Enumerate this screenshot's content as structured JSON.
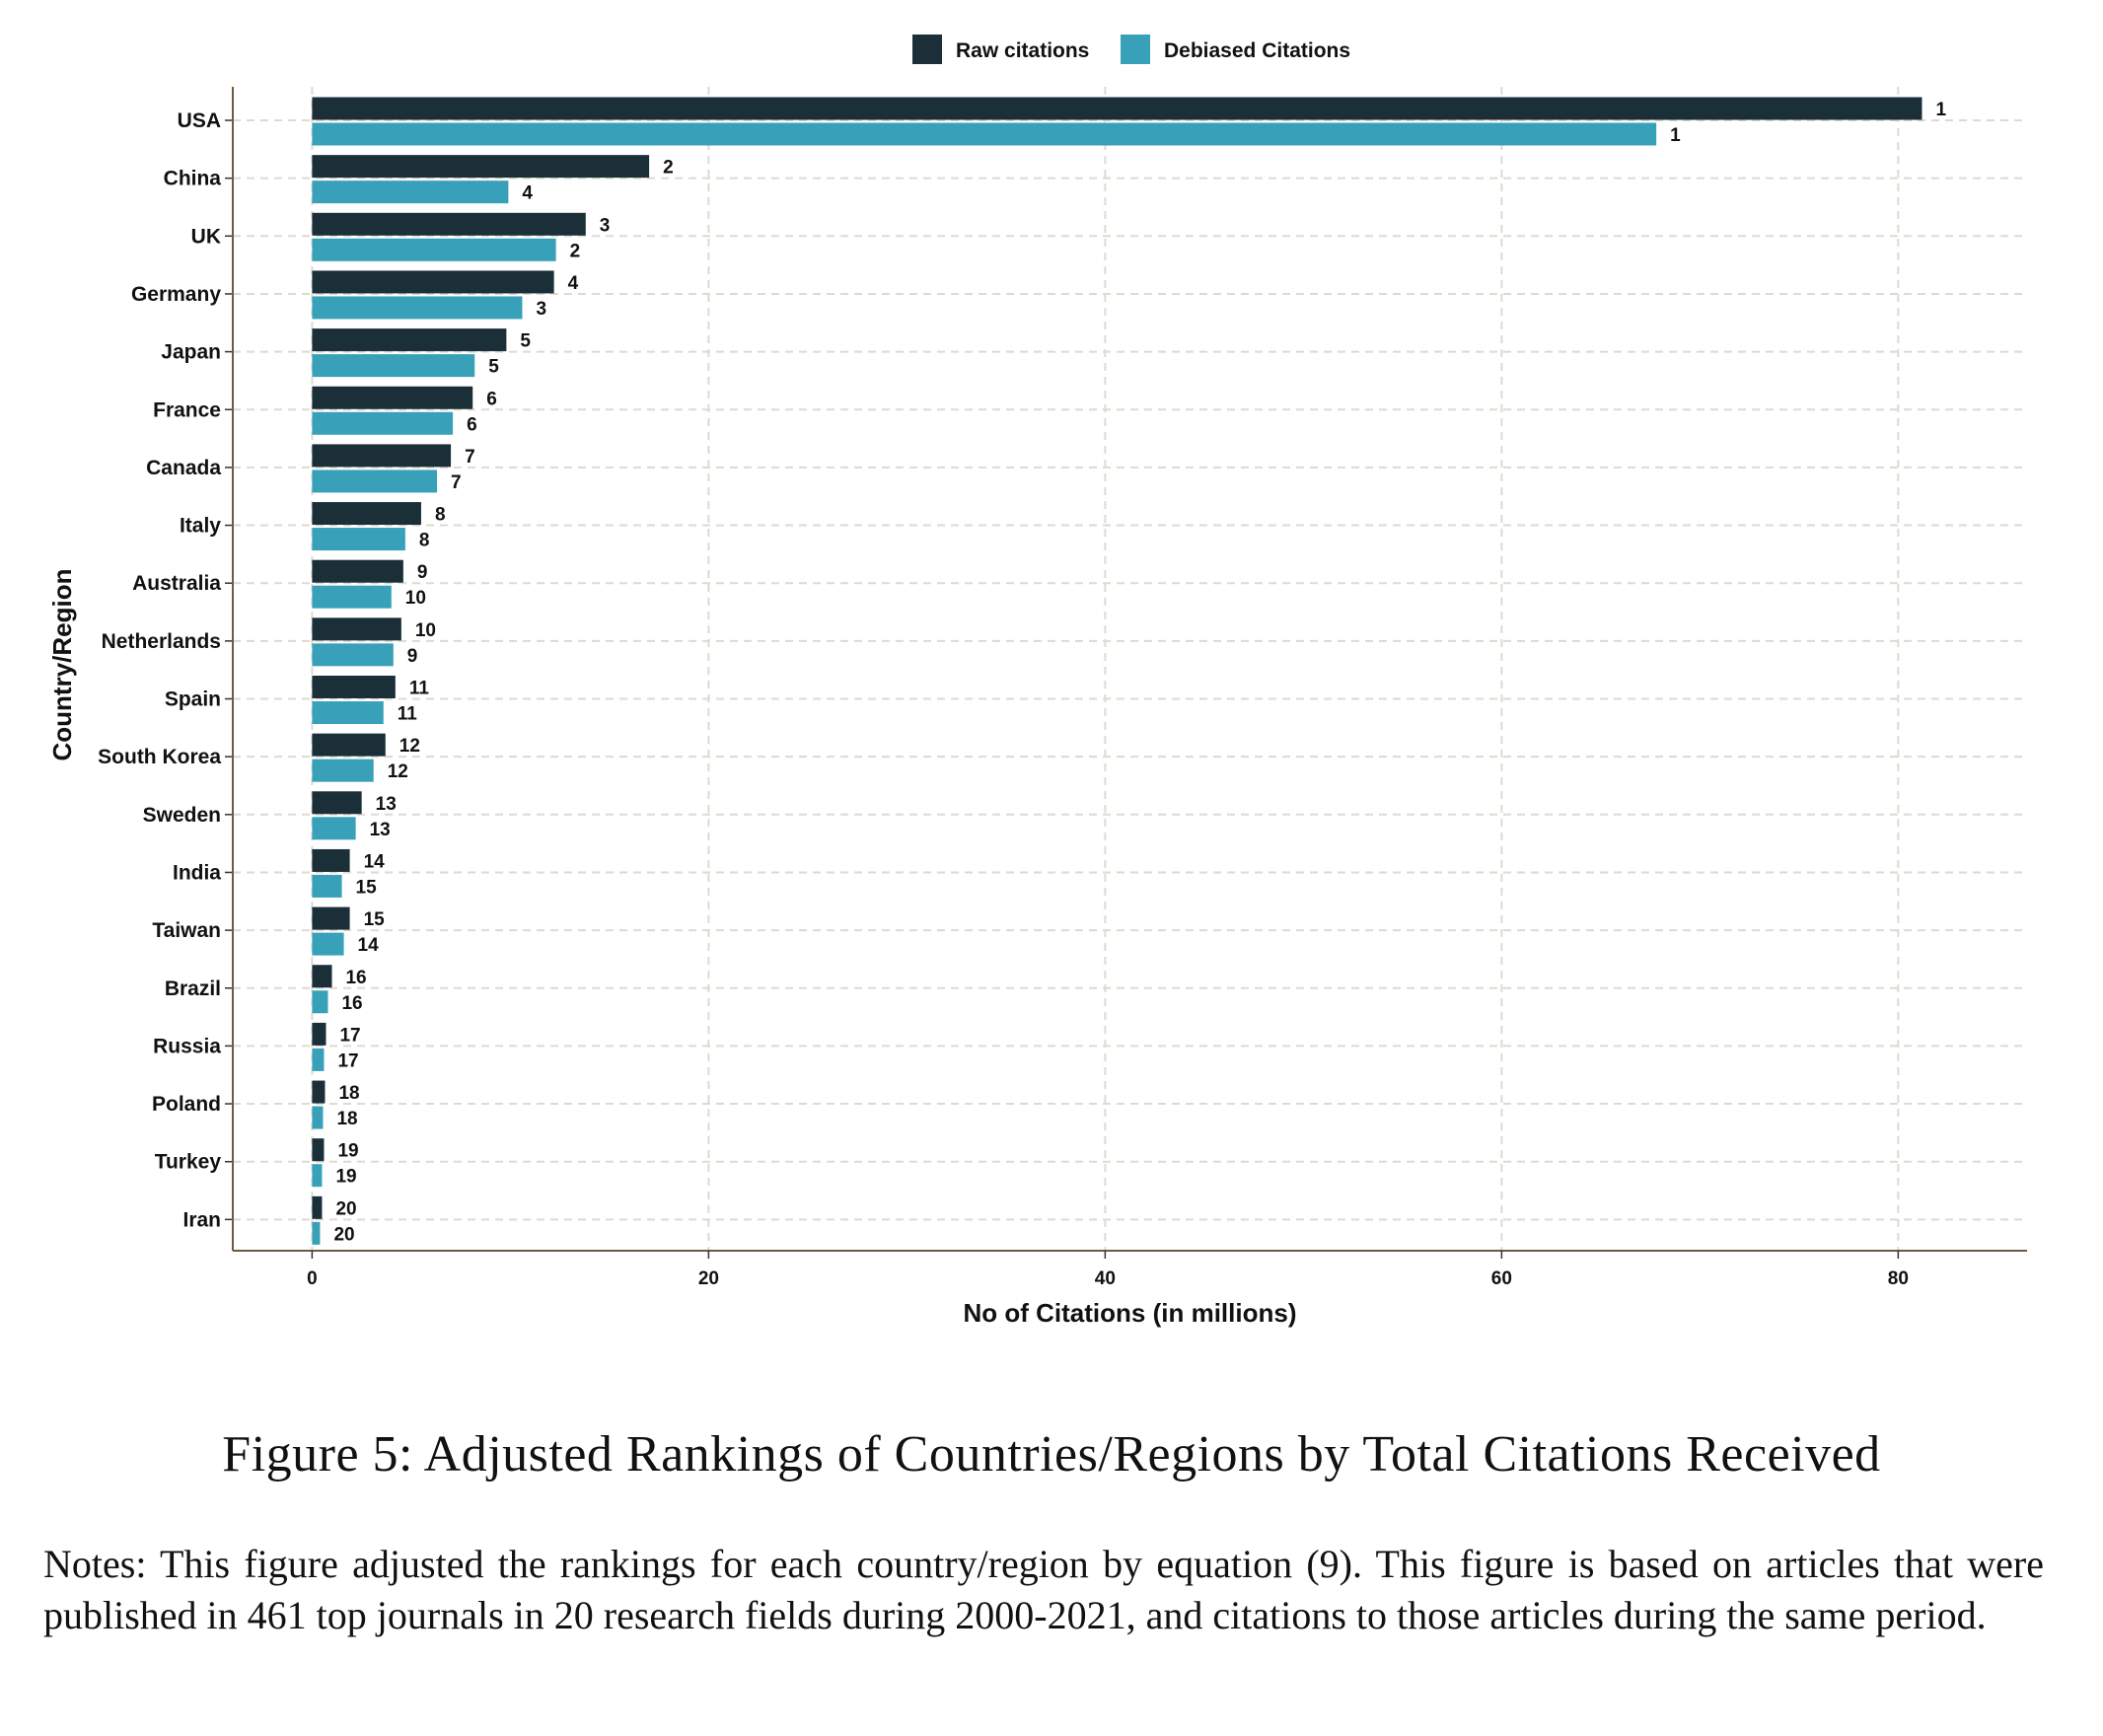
{
  "chart_data": {
    "type": "bar",
    "orientation": "horizontal",
    "categories": [
      "USA",
      "China",
      "UK",
      "Germany",
      "Japan",
      "France",
      "Canada",
      "Italy",
      "Australia",
      "Netherlands",
      "Spain",
      "South Korea",
      "Sweden",
      "India",
      "Taiwan",
      "Brazil",
      "Russia",
      "Poland",
      "Turkey",
      "Iran"
    ],
    "series": [
      {
        "name": "Raw citations",
        "color": "#1a2f38",
        "values": [
          81.2,
          17.0,
          13.8,
          12.2,
          9.8,
          8.1,
          7.0,
          5.5,
          4.6,
          4.5,
          4.2,
          3.7,
          2.5,
          1.9,
          1.9,
          1.0,
          0.7,
          0.65,
          0.6,
          0.5
        ],
        "labels": [
          "1",
          "2",
          "3",
          "4",
          "5",
          "6",
          "7",
          "8",
          "9",
          "10",
          "11",
          "12",
          "13",
          "14",
          "15",
          "16",
          "17",
          "18",
          "19",
          "20"
        ]
      },
      {
        "name": "Debiased Citations",
        "color": "#39a0ba",
        "values": [
          67.8,
          9.9,
          12.3,
          10.6,
          8.2,
          7.1,
          6.3,
          4.7,
          4.0,
          4.1,
          3.6,
          3.1,
          2.2,
          1.5,
          1.6,
          0.8,
          0.6,
          0.55,
          0.5,
          0.4
        ],
        "labels": [
          "1",
          "4",
          "2",
          "3",
          "5",
          "6",
          "7",
          "8",
          "10",
          "9",
          "11",
          "12",
          "13",
          "15",
          "14",
          "16",
          "17",
          "18",
          "19",
          "20"
        ]
      }
    ],
    "xlabel": "No of Citations (in millions)",
    "ylabel": "Country/Region",
    "xlim": [
      -4,
      86.5
    ],
    "xticks": [
      0,
      20,
      40,
      60,
      80
    ],
    "grid": true,
    "legend": "top"
  },
  "caption": "Figure 5: Adjusted Rankings of Countries/Regions by Total Citations Received",
  "notes": "Notes: This figure adjusted the rankings for each country/region by equation (9). This figure is based on articles that were published in 461 top journals in 20 research fields during 2000-2021, and citations to those articles during the same period."
}
